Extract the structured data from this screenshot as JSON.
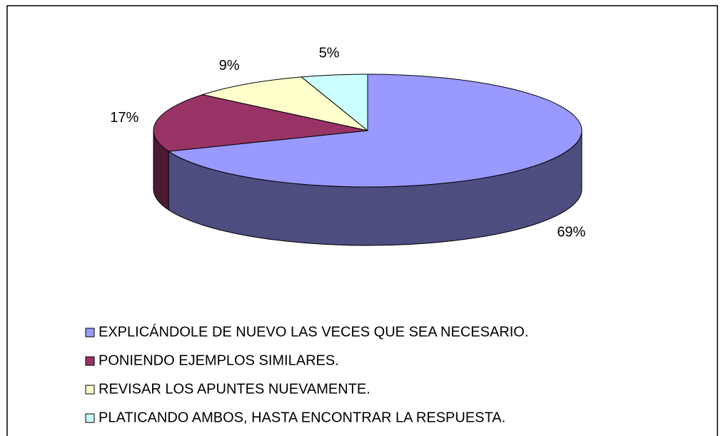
{
  "chart_data": {
    "type": "pie3d",
    "categories": [
      "EXPLICÁNDOLE DE NUEVO LAS VECES QUE SEA NECESARIO.",
      "PONIENDO EJEMPLOS SIMILARES.",
      "REVISAR LOS APUNTES NUEVAMENTE.",
      "PLATICANDO AMBOS, HASTA ENCONTRAR LA RESPUESTA."
    ],
    "values": [
      69,
      17,
      9,
      5
    ],
    "value_labels": [
      "69%",
      "17%",
      "9%",
      "5%"
    ],
    "colors": [
      "#9999ff",
      "#993366",
      "#ffffcc",
      "#ccffff"
    ]
  }
}
